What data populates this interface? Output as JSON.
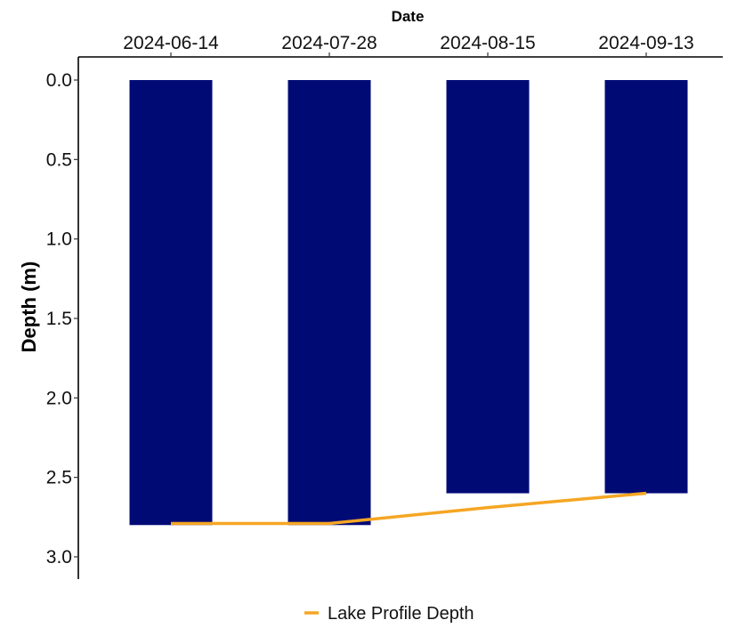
{
  "chart_data": {
    "type": "bar",
    "orientation": "vertical",
    "y_axis_inverted": true,
    "x_axis_position": "top",
    "xlabel": "Date",
    "ylabel": "Depth (m)",
    "categories": [
      "2024-06-14",
      "2024-07-28",
      "2024-08-15",
      "2024-09-13"
    ],
    "yticks": [
      "0.0",
      "0.5",
      "1.0",
      "1.5",
      "2.0",
      "2.5",
      "3.0"
    ],
    "ylim": [
      0,
      3.1
    ],
    "bars": {
      "values": [
        2.8,
        2.8,
        2.6,
        2.6
      ],
      "color": "#000a75"
    },
    "series": [
      {
        "name": "Lake Profile Depth",
        "type": "line",
        "color": "#f5a623",
        "x": [
          "2024-06-14",
          "2024-07-28",
          "2024-08-15",
          "2024-09-13"
        ],
        "values": [
          2.79,
          2.79,
          2.69,
          2.6
        ]
      }
    ],
    "legend_position": "bottom",
    "grid": false
  }
}
